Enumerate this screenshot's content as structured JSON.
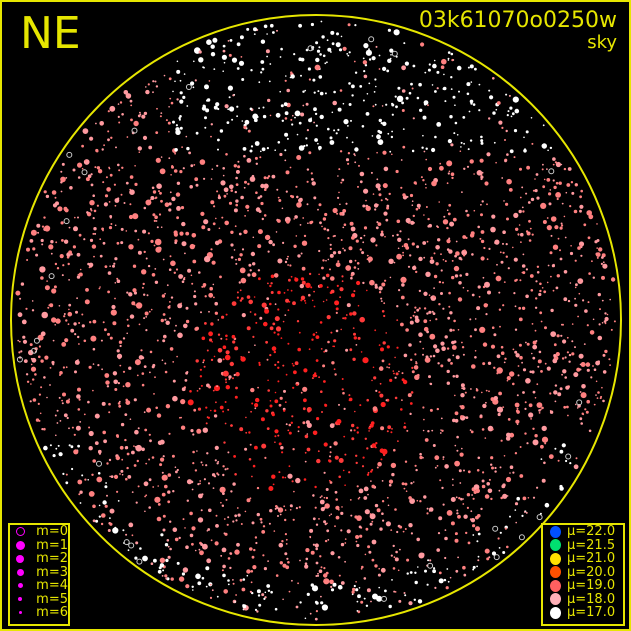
{
  "header": {
    "direction": "NE",
    "image_id": "03k61070o0250w",
    "mode": "sky"
  },
  "colors": {
    "frame": "#e6e600",
    "horizon_circle": "#e6e600",
    "magnitude_symbol": "#ff00ff"
  },
  "magnitude_legend": [
    {
      "label": "m=0",
      "style": "ring"
    },
    {
      "label": "m=1"
    },
    {
      "label": "m=2"
    },
    {
      "label": "m=3"
    },
    {
      "label": "m=4"
    },
    {
      "label": "m=5"
    },
    {
      "label": "m=6"
    }
  ],
  "brightness_legend": [
    {
      "label": "μ=22.0",
      "color": "#0050ff"
    },
    {
      "label": "μ=21.5",
      "color": "#00e070"
    },
    {
      "label": "μ=21.0",
      "color": "#ffe000"
    },
    {
      "label": "μ=20.0",
      "color": "#ff5000"
    },
    {
      "label": "μ=19.0",
      "color": "#ff6060"
    },
    {
      "label": "μ=18.0",
      "color": "#ffb0b8"
    },
    {
      "label": "μ=17.0",
      "color": "#ffffff"
    }
  ]
}
